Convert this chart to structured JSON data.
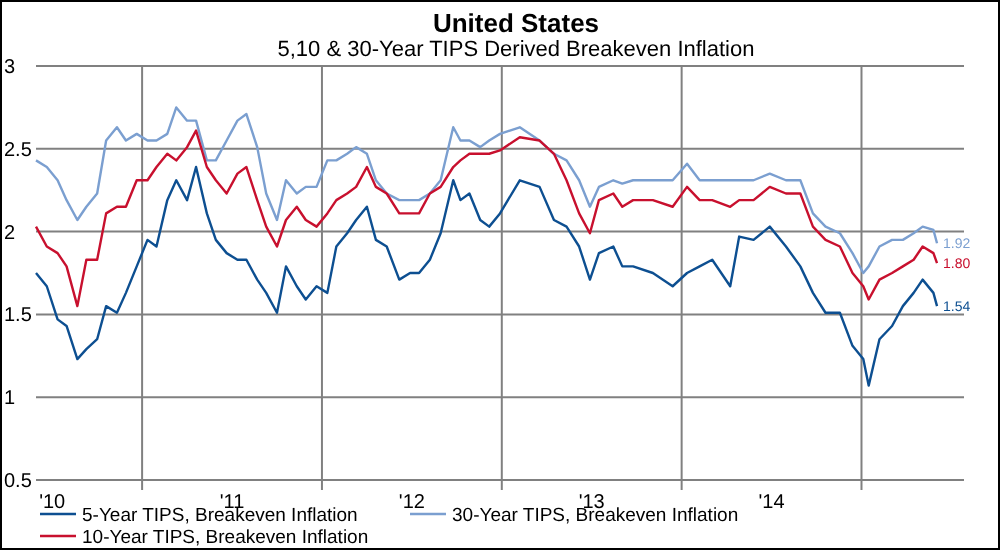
{
  "chart_data": {
    "type": "line",
    "title": "United States",
    "subtitle": "5,10 & 30-Year TIPS Derived Breakeven Inflation",
    "x": [
      2009.91,
      2009.97,
      2010.03,
      2010.08,
      2010.14,
      2010.19,
      2010.25,
      2010.3,
      2010.36,
      2010.41,
      2010.47,
      2010.53,
      2010.58,
      2010.64,
      2010.69,
      2010.75,
      2010.8,
      2010.86,
      2010.91,
      2010.97,
      2011.03,
      2011.08,
      2011.14,
      2011.19,
      2011.25,
      2011.3,
      2011.36,
      2011.41,
      2011.47,
      2011.53,
      2011.58,
      2011.64,
      2011.69,
      2011.75,
      2011.8,
      2011.86,
      2011.93,
      2011.99,
      2012.04,
      2012.1,
      2012.16,
      2012.23,
      2012.27,
      2012.32,
      2012.38,
      2012.43,
      2012.49,
      2012.6,
      2012.71,
      2012.79,
      2012.86,
      2012.93,
      2012.99,
      2013.04,
      2013.12,
      2013.17,
      2013.23,
      2013.34,
      2013.45,
      2013.53,
      2013.6,
      2013.67,
      2013.77,
      2013.82,
      2013.9,
      2013.99,
      2014.08,
      2014.16,
      2014.23,
      2014.3,
      2014.38,
      2014.45,
      2014.51,
      2014.54,
      2014.6,
      2014.67,
      2014.73,
      2014.79,
      2014.84,
      2014.9,
      2014.92
    ],
    "series": [
      {
        "name": "5-Year TIPS, Breakeven Inflation",
        "color": "#0d4f91",
        "values": [
          1.75,
          1.67,
          1.47,
          1.43,
          1.23,
          1.29,
          1.35,
          1.55,
          1.51,
          1.63,
          1.79,
          1.95,
          1.91,
          2.19,
          2.31,
          2.19,
          2.39,
          2.11,
          1.95,
          1.87,
          1.83,
          1.83,
          1.71,
          1.63,
          1.51,
          1.79,
          1.67,
          1.59,
          1.67,
          1.63,
          1.91,
          1.99,
          2.07,
          2.15,
          1.95,
          1.91,
          1.71,
          1.75,
          1.75,
          1.83,
          1.99,
          2.31,
          2.19,
          2.23,
          2.07,
          2.03,
          2.11,
          2.31,
          2.27,
          2.07,
          2.03,
          1.91,
          1.71,
          1.87,
          1.91,
          1.79,
          1.79,
          1.75,
          1.67,
          1.75,
          1.79,
          1.83,
          1.67,
          1.97,
          1.95,
          2.03,
          1.91,
          1.79,
          1.63,
          1.51,
          1.51,
          1.31,
          1.23,
          1.07,
          1.35,
          1.43,
          1.55,
          1.63,
          1.71,
          1.63,
          1.55
        ]
      },
      {
        "name": "30-Year TIPS, Breakeven Inflation",
        "color": "#7b9fd0",
        "values": [
          2.43,
          2.39,
          2.31,
          2.19,
          2.07,
          2.15,
          2.23,
          2.55,
          2.63,
          2.55,
          2.59,
          2.55,
          2.55,
          2.59,
          2.75,
          2.67,
          2.67,
          2.43,
          2.43,
          2.55,
          2.67,
          2.71,
          2.51,
          2.23,
          2.07,
          2.31,
          2.23,
          2.27,
          2.27,
          2.43,
          2.43,
          2.47,
          2.51,
          2.47,
          2.31,
          2.23,
          2.19,
          2.19,
          2.19,
          2.23,
          2.31,
          2.63,
          2.55,
          2.55,
          2.51,
          2.55,
          2.59,
          2.63,
          2.55,
          2.47,
          2.43,
          2.31,
          2.15,
          2.27,
          2.31,
          2.29,
          2.31,
          2.31,
          2.31,
          2.41,
          2.31,
          2.31,
          2.31,
          2.31,
          2.31,
          2.35,
          2.31,
          2.31,
          2.11,
          2.03,
          1.99,
          1.87,
          1.75,
          1.79,
          1.91,
          1.95,
          1.95,
          1.99,
          2.03,
          2.01,
          1.93
        ]
      },
      {
        "name": "10-Year TIPS, Breakeven Inflation",
        "color": "#c8102e",
        "values": [
          2.03,
          1.91,
          1.87,
          1.79,
          1.55,
          1.83,
          1.83,
          2.11,
          2.15,
          2.15,
          2.31,
          2.31,
          2.39,
          2.47,
          2.43,
          2.51,
          2.61,
          2.39,
          2.31,
          2.23,
          2.35,
          2.39,
          2.19,
          2.03,
          1.91,
          2.07,
          2.15,
          2.07,
          2.03,
          2.11,
          2.19,
          2.23,
          2.27,
          2.39,
          2.27,
          2.23,
          2.11,
          2.11,
          2.11,
          2.23,
          2.27,
          2.39,
          2.43,
          2.47,
          2.47,
          2.47,
          2.49,
          2.57,
          2.55,
          2.47,
          2.31,
          2.11,
          1.99,
          2.19,
          2.23,
          2.15,
          2.19,
          2.19,
          2.15,
          2.27,
          2.19,
          2.19,
          2.15,
          2.19,
          2.19,
          2.27,
          2.23,
          2.23,
          2.03,
          1.95,
          1.91,
          1.75,
          1.67,
          1.59,
          1.71,
          1.75,
          1.79,
          1.83,
          1.91,
          1.87,
          1.81
        ]
      }
    ],
    "xlim": [
      2009.91,
      2015.07
    ],
    "xticks": [
      {
        "value": 2010,
        "label": "'10"
      },
      {
        "value": 2010.5,
        "label": null
      },
      {
        "value": 2011,
        "label": "'11"
      },
      {
        "value": 2011.5,
        "label": null
      },
      {
        "value": 2012,
        "label": "'12"
      },
      {
        "value": 2012.5,
        "label": null
      },
      {
        "value": 2013,
        "label": "'13"
      },
      {
        "value": 2013.5,
        "label": null
      },
      {
        "value": 2014,
        "label": "'14"
      },
      {
        "value": 2014.5,
        "label": null
      }
    ],
    "ylim": [
      0.5,
      3
    ],
    "yticks": [
      0.5,
      1,
      1.5,
      2,
      2.5,
      3
    ],
    "grid": true,
    "legend": "bottom",
    "marker": "none",
    "line_style": "solid",
    "annotations": [
      "1.92",
      "1.80",
      "1.54"
    ]
  }
}
